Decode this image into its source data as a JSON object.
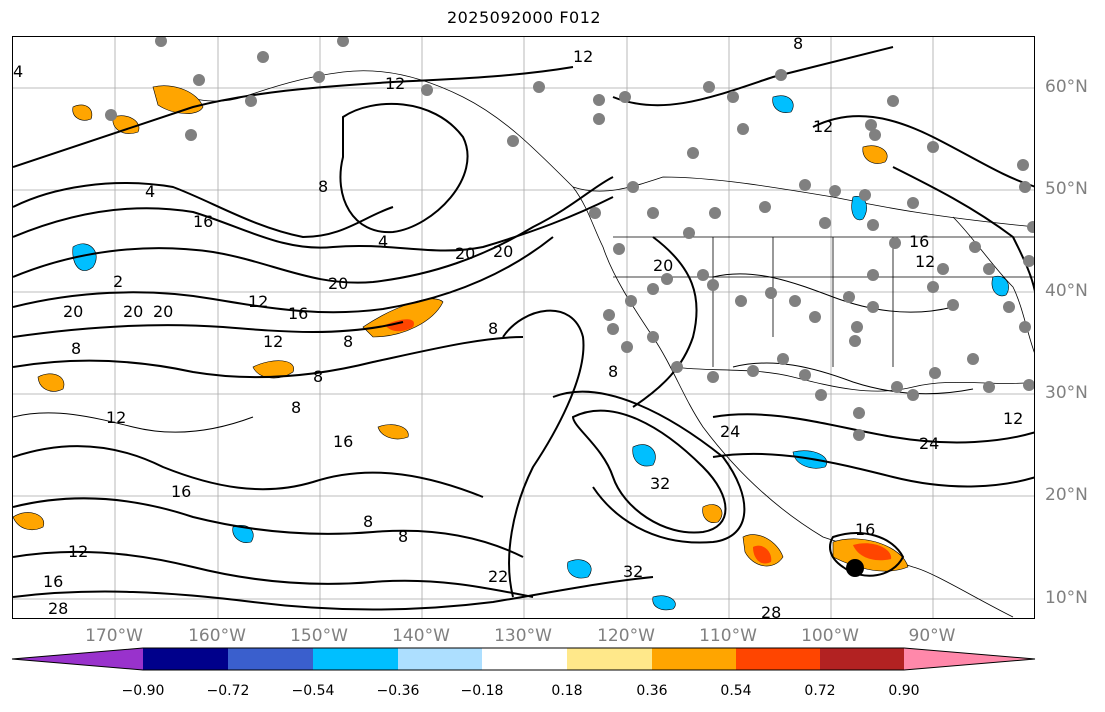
{
  "title": "2025092000 F012",
  "longitude_labels": [
    "170°W",
    "160°W",
    "150°W",
    "140°W",
    "130°W",
    "120°W",
    "110°W",
    "100°W",
    "90°W"
  ],
  "latitude_labels": [
    "60°N",
    "50°N",
    "40°N",
    "30°N",
    "20°N",
    "10°N"
  ],
  "contour_labels": [
    "12",
    "12",
    "8",
    "4",
    "4",
    "8",
    "12",
    "16",
    "20",
    "20",
    "16",
    "12",
    "12",
    "8",
    "8",
    "20",
    "8",
    "12",
    "16",
    "8",
    "8",
    "8",
    "12",
    "16",
    "16",
    "20",
    "20",
    "24",
    "32",
    "32",
    "22",
    "28",
    "28",
    "16",
    "12",
    "8",
    "20",
    "12",
    "24",
    "4",
    "8",
    "2",
    "16",
    "20"
  ],
  "colorbar": {
    "ticks": [
      "−0.90",
      "−0.72",
      "−0.54",
      "−0.36",
      "−0.18",
      "0.18",
      "0.36",
      "0.54",
      "0.72",
      "0.90"
    ],
    "colors": [
      "#9932CC",
      "#00008B",
      "#3A5FCD",
      "#00BFFF",
      "#ADDFFF",
      "#FFFFFF",
      "#FFE88A",
      "#FFA500",
      "#FF4500",
      "#B22222",
      "#FF88AA"
    ]
  },
  "map_colors": {
    "positive_fill": "#FFA500",
    "strong_positive_fill": "#FF4500",
    "negative_fill": "#00BFFF",
    "station_marker": "#808080",
    "grid": "#A9A9A9"
  }
}
